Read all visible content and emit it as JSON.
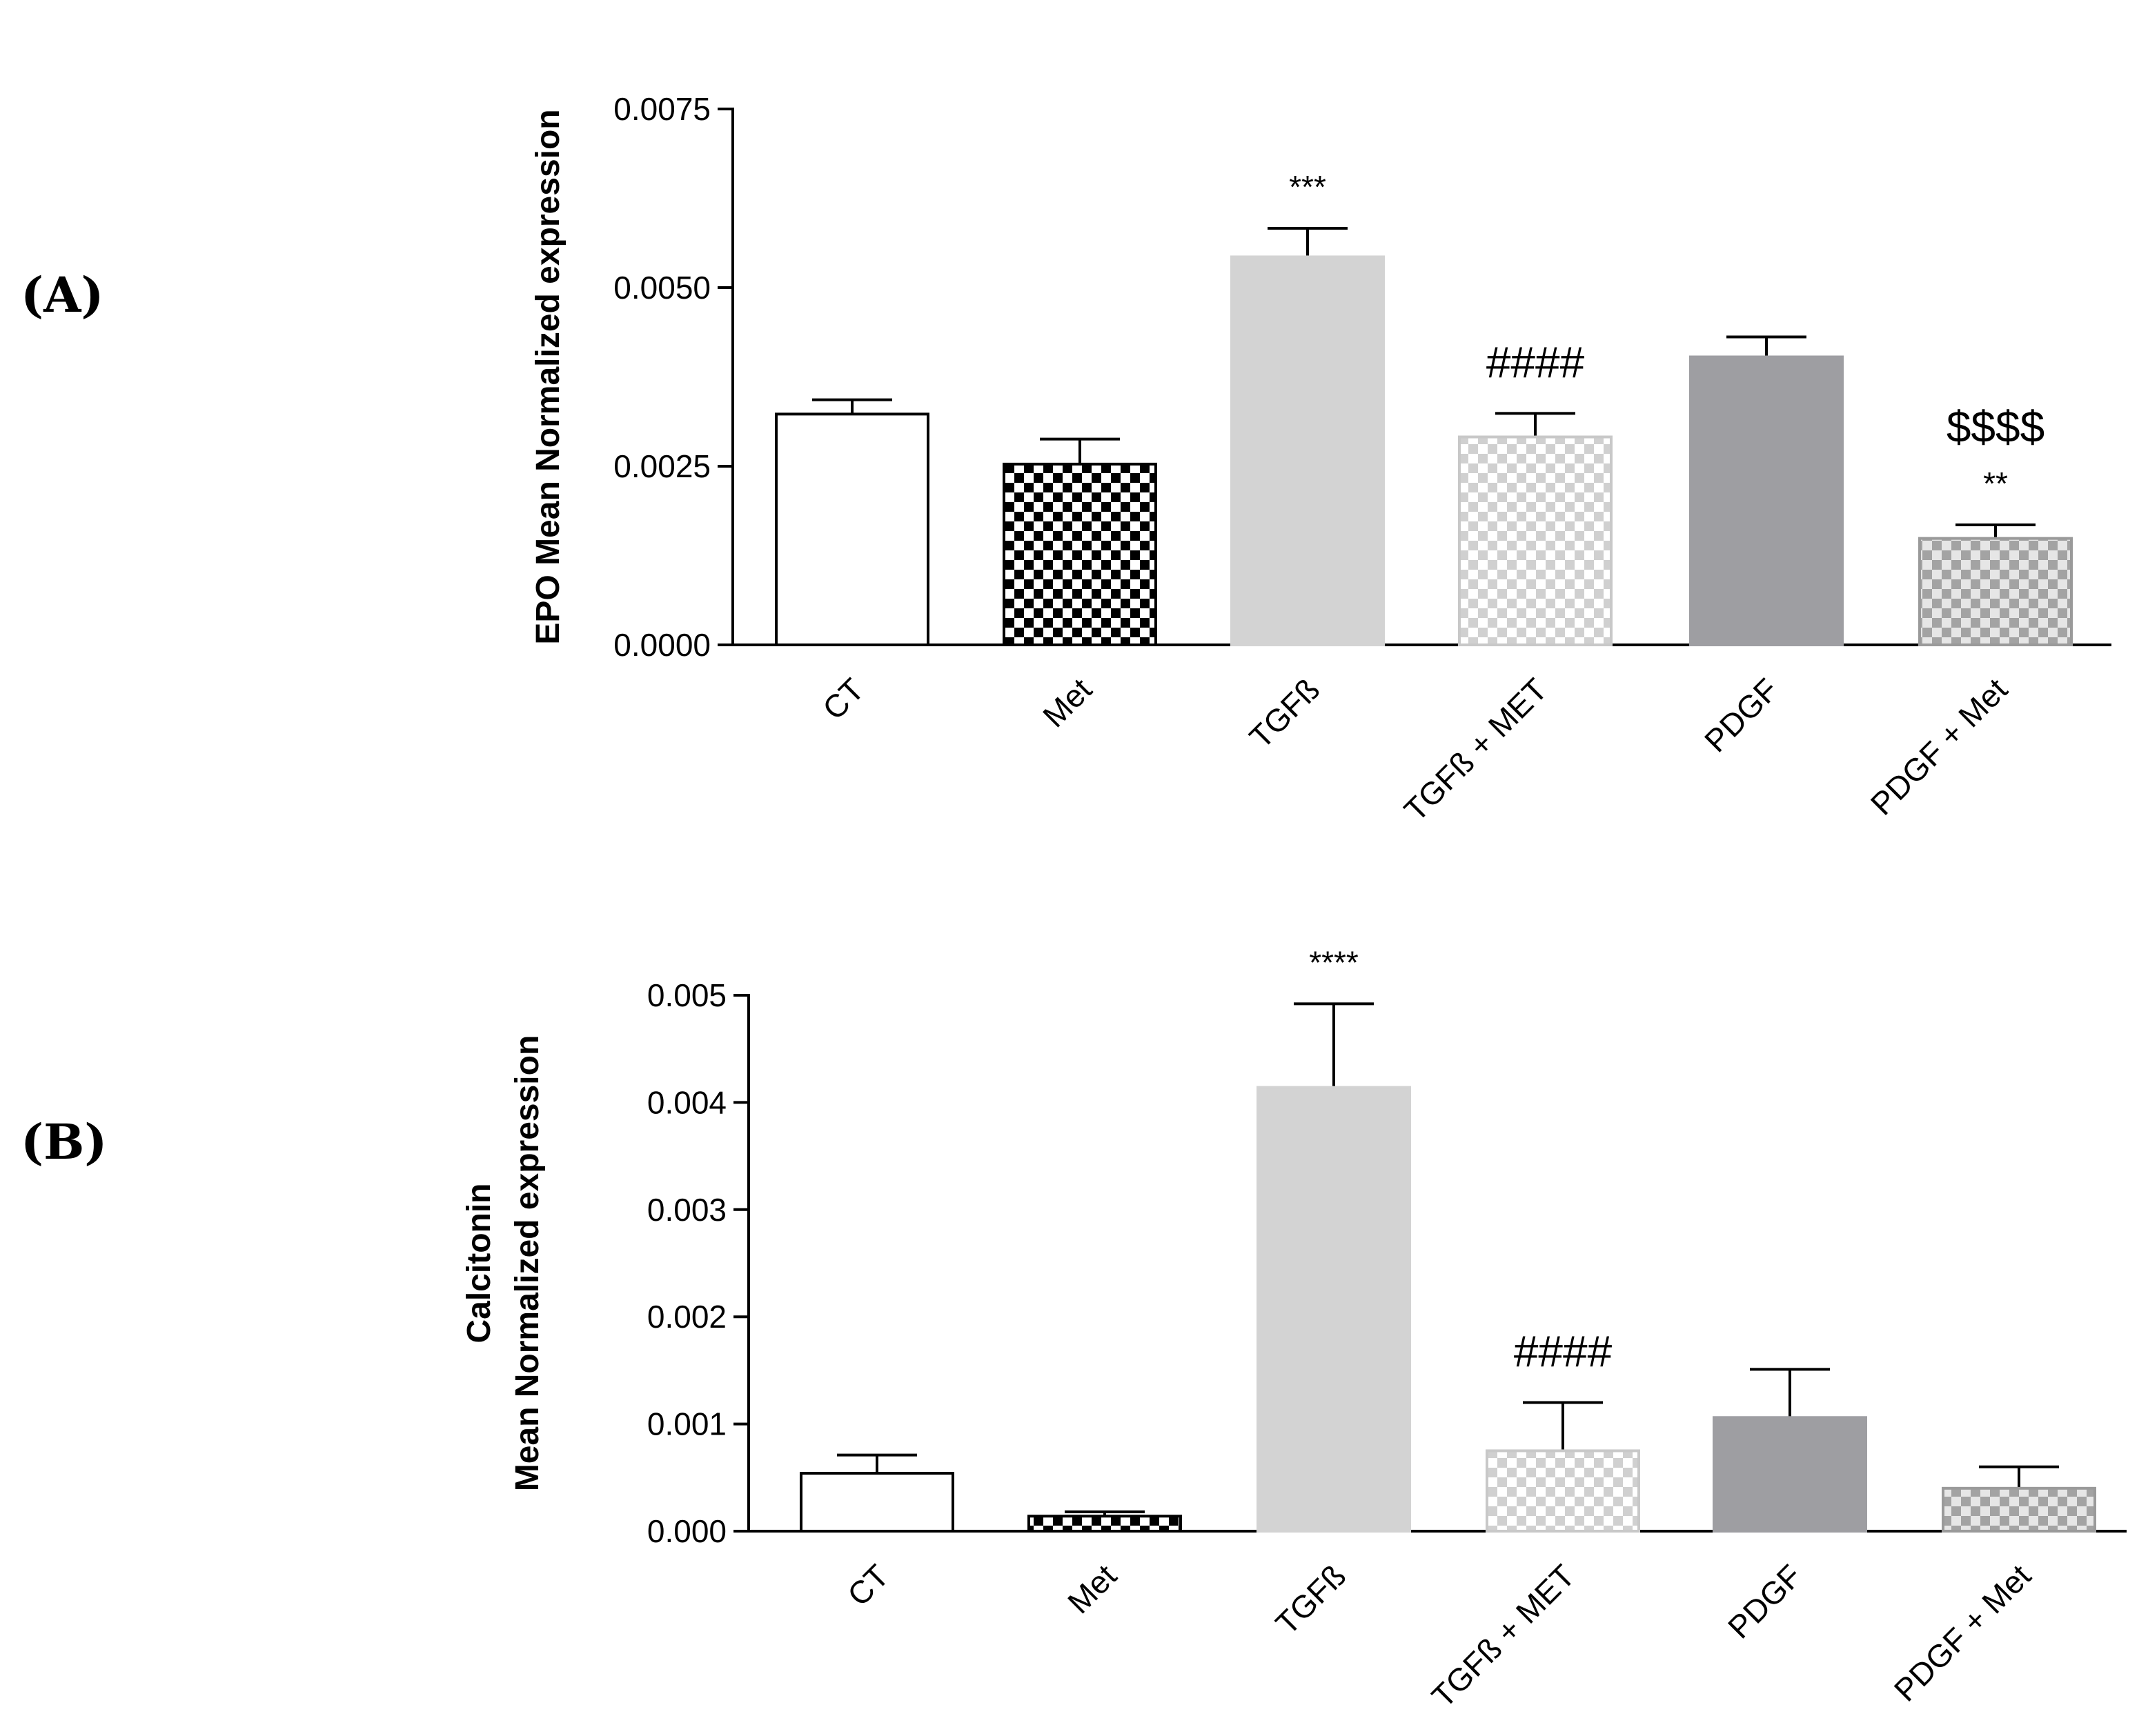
{
  "panels": {
    "A": {
      "label": "(A)"
    },
    "B": {
      "label": "(B)"
    }
  },
  "colors": {
    "axis": "#000000",
    "white_fill": "#ffffff",
    "light_gray": "#d3d3d3",
    "dark_gray": "#9e9ea2",
    "black": "#000000",
    "check_light": "#d0d0d0",
    "check_dark": "#a3a3a3"
  },
  "chart_data": [
    {
      "id": "A",
      "type": "bar",
      "ylabel_lines": [
        "EPO Mean Normalized expression"
      ],
      "xlabel": "",
      "ylim": [
        0,
        0.0075
      ],
      "ytick_labels": [
        "0.0000",
        "0.0025",
        "0.0050",
        "0.0075"
      ],
      "ytick_values": [
        0,
        0.0025,
        0.005,
        0.0075
      ],
      "categories": [
        "CT",
        "Met",
        "TGFß",
        "TGFß + MET",
        "PDGF",
        "PDGF + Met"
      ],
      "values": [
        0.00323,
        0.00253,
        0.00543,
        0.00291,
        0.00403,
        0.00149
      ],
      "errors": [
        0.0002,
        0.00035,
        0.0004,
        0.00033,
        0.00028,
        0.00019
      ],
      "fills": [
        "white",
        "checker-black",
        "light-gray",
        "checker-light",
        "dark-gray",
        "checker-dark"
      ],
      "annotations": [
        {
          "category": "TGFß",
          "lines": [
            "***"
          ]
        },
        {
          "category": "TGFß + MET",
          "lines": [
            "####"
          ]
        },
        {
          "category": "PDGF + Met",
          "lines": [
            "$$$$",
            "**"
          ]
        }
      ]
    },
    {
      "id": "B",
      "type": "bar",
      "ylabel_lines": [
        "Calcitonin",
        "Mean Normalized expression"
      ],
      "xlabel": "",
      "ylim": [
        0,
        0.005
      ],
      "ytick_labels": [
        "0.000",
        "0.001",
        "0.002",
        "0.003",
        "0.004",
        "0.005"
      ],
      "ytick_values": [
        0,
        0.001,
        0.002,
        0.003,
        0.004,
        0.005
      ],
      "categories": [
        "CT",
        "Met",
        "TGFß",
        "TGFß + MET",
        "PDGF",
        "PDGF + Met"
      ],
      "values": [
        0.00054,
        0.00014,
        0.00414,
        0.00075,
        0.00106,
        0.0004
      ],
      "errors": [
        0.00017,
        4e-05,
        0.00078,
        0.00045,
        0.00045,
        0.0002
      ],
      "fills": [
        "white",
        "checker-black",
        "light-gray",
        "checker-light",
        "dark-gray",
        "checker-dark"
      ],
      "annotations": [
        {
          "category": "TGFß",
          "lines": [
            "****"
          ]
        },
        {
          "category": "TGFß + MET",
          "lines": [
            "####"
          ]
        }
      ]
    }
  ]
}
